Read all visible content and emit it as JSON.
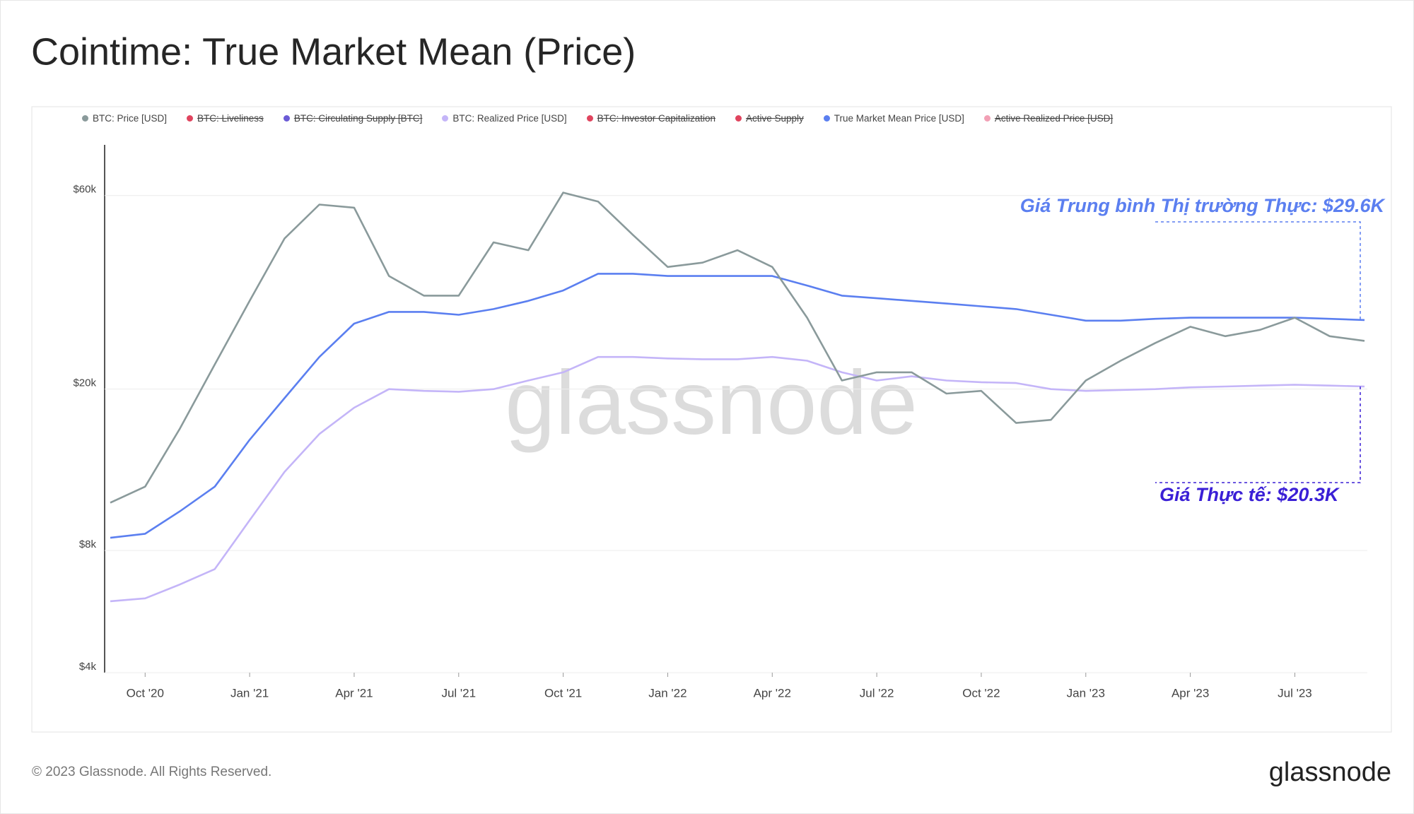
{
  "chart_data": {
    "type": "line",
    "title": "Cointime: True Market Mean (Price)",
    "log_scale": true,
    "grid": true,
    "x": [
      "2020-09",
      "2020-10",
      "2020-11",
      "2020-12",
      "2021-01",
      "2021-02",
      "2021-03",
      "2021-04",
      "2021-05",
      "2021-06",
      "2021-07",
      "2021-08",
      "2021-09",
      "2021-10",
      "2021-11",
      "2021-12",
      "2022-01",
      "2022-02",
      "2022-03",
      "2022-04",
      "2022-05",
      "2022-06",
      "2022-07",
      "2022-08",
      "2022-09",
      "2022-10",
      "2022-11",
      "2022-12",
      "2023-01",
      "2023-02",
      "2023-03",
      "2023-04",
      "2023-05",
      "2023-06",
      "2023-07",
      "2023-08",
      "2023-09"
    ],
    "xlim": [
      "2020-09",
      "2023-09"
    ],
    "xticks": [
      {
        "value": "2020-10",
        "label": "Oct '20"
      },
      {
        "value": "2021-01",
        "label": "Jan '21"
      },
      {
        "value": "2021-04",
        "label": "Apr '21"
      },
      {
        "value": "2021-07",
        "label": "Jul '21"
      },
      {
        "value": "2021-10",
        "label": "Oct '21"
      },
      {
        "value": "2022-01",
        "label": "Jan '22"
      },
      {
        "value": "2022-04",
        "label": "Apr '22"
      },
      {
        "value": "2022-07",
        "label": "Jul '22"
      },
      {
        "value": "2022-10",
        "label": "Oct '22"
      },
      {
        "value": "2023-01",
        "label": "Jan '23"
      },
      {
        "value": "2023-04",
        "label": "Apr '23"
      },
      {
        "value": "2023-07",
        "label": "Jul '23"
      }
    ],
    "ylim": [
      4000,
      80000
    ],
    "yticks": [
      {
        "value": 4000,
        "label": "$4k"
      },
      {
        "value": 8000,
        "label": "$8k"
      },
      {
        "value": 20000,
        "label": "$20k"
      },
      {
        "value": 60000,
        "label": "$60k"
      }
    ],
    "series": [
      {
        "name": "BTC: Price [USD]",
        "color": "#8a9a9b",
        "values": [
          10500,
          11500,
          16000,
          23000,
          33000,
          47000,
          57000,
          56000,
          38000,
          34000,
          34000,
          46000,
          44000,
          61000,
          58000,
          48000,
          40000,
          41000,
          44000,
          40000,
          30000,
          21000,
          22000,
          22000,
          19500,
          19800,
          16500,
          16800,
          21000,
          23500,
          26000,
          28500,
          27000,
          28000,
          30000,
          27000,
          26300
        ]
      },
      {
        "name": "BTC: Liveliness",
        "color": "#e0445e",
        "visible": false
      },
      {
        "name": "BTC: Circulating Supply [BTC]",
        "color": "#6b5bd6",
        "visible": false
      },
      {
        "name": "BTC: Realized Price [USD]",
        "color": "#c4b5f8",
        "values": [
          6000,
          6100,
          6600,
          7200,
          9500,
          12500,
          15500,
          18000,
          20000,
          19800,
          19700,
          20000,
          21000,
          22000,
          24000,
          24000,
          23800,
          23700,
          23700,
          24000,
          23500,
          22000,
          21000,
          21500,
          21000,
          20800,
          20700,
          20000,
          19800,
          19900,
          20000,
          20200,
          20300,
          20400,
          20500,
          20400,
          20300
        ]
      },
      {
        "name": "BTC: Investor Capitalization",
        "color": "#e0445e",
        "visible": false
      },
      {
        "name": "Active Supply",
        "color": "#e0445e",
        "visible": false
      },
      {
        "name": "True Market Mean Price [USD]",
        "color": "#5b7ff0",
        "values": [
          8600,
          8800,
          10000,
          11500,
          15000,
          19000,
          24000,
          29000,
          31000,
          31000,
          30500,
          31500,
          33000,
          35000,
          38500,
          38500,
          38000,
          38000,
          38000,
          38000,
          36000,
          34000,
          33500,
          33000,
          32500,
          32000,
          31500,
          30500,
          29500,
          29500,
          29800,
          30000,
          30000,
          30000,
          30000,
          29800,
          29600
        ]
      },
      {
        "name": "Active Realized Price [USD]",
        "color": "#f2a0b5",
        "visible": false
      }
    ],
    "annotations": [
      {
        "text": "Giá Trung bình Thị trường Thực: $29.6K",
        "color": "#5b7ff0"
      },
      {
        "text": "Giá Thực tế: $20.3K",
        "color": "#3a1fd6"
      }
    ],
    "watermark": "glassnode"
  },
  "footer": {
    "copyright": "© 2023 Glassnode. All Rights Reserved.",
    "logo": "glassnode"
  }
}
